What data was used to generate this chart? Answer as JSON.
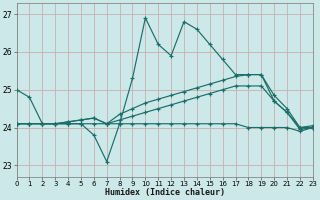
{
  "xlabel": "Humidex (Indice chaleur)",
  "xlim": [
    0,
    23
  ],
  "ylim": [
    22.7,
    27.3
  ],
  "yticks": [
    23,
    24,
    25,
    26,
    27
  ],
  "xticks": [
    0,
    1,
    2,
    3,
    4,
    5,
    6,
    7,
    8,
    9,
    10,
    11,
    12,
    13,
    14,
    15,
    16,
    17,
    18,
    19,
    20,
    21,
    22,
    23
  ],
  "bg_color": "#cce8e8",
  "grid_color": "#c8b0b0",
  "line_color": "#1a6e6a",
  "lines": [
    {
      "x": [
        0,
        1,
        2,
        3,
        4,
        5,
        6,
        7,
        8,
        9,
        10,
        11,
        12,
        13,
        14,
        15,
        16,
        17,
        18,
        19,
        20,
        21,
        22,
        23
      ],
      "y": [
        25.0,
        24.8,
        24.1,
        24.1,
        24.1,
        24.1,
        23.8,
        23.1,
        24.1,
        25.3,
        26.9,
        26.2,
        25.9,
        26.8,
        26.6,
        26.2,
        25.8,
        25.4,
        25.4,
        25.4,
        24.7,
        24.4,
        24.0,
        24.0
      ]
    },
    {
      "x": [
        0,
        1,
        2,
        3,
        4,
        5,
        6,
        7,
        8,
        9,
        10,
        11,
        12,
        13,
        14,
        15,
        16,
        17,
        18,
        19,
        20,
        21,
        22,
        23
      ],
      "y": [
        24.1,
        24.1,
        24.1,
        24.1,
        24.1,
        24.1,
        24.1,
        24.1,
        24.1,
        24.1,
        24.1,
        24.1,
        24.1,
        24.1,
        24.1,
        24.1,
        24.1,
        24.1,
        24.0,
        24.0,
        24.0,
        24.0,
        23.9,
        24.0
      ]
    },
    {
      "x": [
        0,
        1,
        2,
        3,
        4,
        5,
        6,
        7,
        8,
        9,
        10,
        11,
        12,
        13,
        14,
        15,
        16,
        17,
        18,
        19,
        20,
        21,
        22,
        23
      ],
      "y": [
        24.1,
        24.1,
        24.1,
        24.1,
        24.15,
        24.2,
        24.25,
        24.1,
        24.35,
        24.5,
        24.65,
        24.75,
        24.85,
        24.95,
        25.05,
        25.15,
        25.25,
        25.35,
        25.4,
        25.4,
        24.85,
        24.5,
        24.0,
        24.05
      ]
    },
    {
      "x": [
        0,
        1,
        2,
        3,
        4,
        5,
        6,
        7,
        8,
        9,
        10,
        11,
        12,
        13,
        14,
        15,
        16,
        17,
        18,
        19,
        20,
        21,
        22,
        23
      ],
      "y": [
        24.1,
        24.1,
        24.1,
        24.1,
        24.15,
        24.2,
        24.25,
        24.1,
        24.2,
        24.3,
        24.4,
        24.5,
        24.6,
        24.7,
        24.8,
        24.9,
        25.0,
        25.1,
        25.1,
        25.1,
        24.7,
        24.4,
        23.95,
        24.0
      ]
    }
  ]
}
